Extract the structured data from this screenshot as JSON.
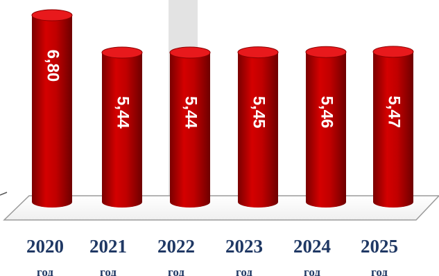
{
  "chart_data": {
    "type": "bar",
    "style": "3d-cylinder",
    "categories": [
      "2020",
      "2021",
      "2022",
      "2023",
      "2024",
      "2025"
    ],
    "category_suffix": "год",
    "values": [
      6.8,
      5.44,
      5.44,
      5.45,
      5.46,
      5.47
    ],
    "value_labels": [
      "6,80",
      "5,44",
      "5,44",
      "5,45",
      "5,46",
      "5,47"
    ],
    "title": "",
    "xlabel": "",
    "ylabel": "",
    "grid": false,
    "colors": {
      "bar": "#c00000",
      "bar_dark": "#8b0000",
      "bar_top": "#e8191c",
      "axis_text": "#1f3864",
      "highlight": "#e3e3e3"
    }
  }
}
